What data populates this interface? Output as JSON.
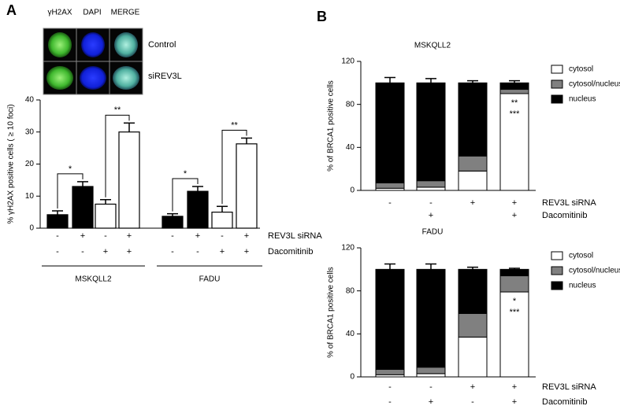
{
  "panel_labels": [
    "A",
    "B"
  ],
  "images": {
    "columns": [
      "γH2AX",
      "DAPI",
      "MERGE"
    ],
    "rows": [
      "Control",
      "siREV3L"
    ]
  },
  "chart_data": [
    {
      "type": "bar",
      "y_label": "% γH2AX positive cells ( ≥ 10 foci)",
      "values": [
        4.2,
        13,
        7.5,
        30,
        3.7,
        11.5,
        5,
        26.3
      ],
      "errors": [
        1.2,
        1.5,
        1.4,
        2.8,
        0.8,
        1.5,
        1.8,
        1.8
      ],
      "colors": [
        "#000000",
        "#000000",
        "#ffffff",
        "#ffffff",
        "#000000",
        "#000000",
        "#ffffff",
        "#ffffff"
      ],
      "ylim": [
        0,
        40
      ],
      "yticks": [
        0,
        10,
        20,
        30,
        40
      ],
      "annotations": [
        "*",
        "**",
        "*",
        "**"
      ],
      "conditions": [
        {
          "name": "REV3L siRNA",
          "labels": [
            "-",
            "+",
            "-",
            "+",
            "-",
            "+",
            "-",
            "+"
          ]
        },
        {
          "name": "Dacomitinib",
          "labels": [
            "-",
            "-",
            "+",
            "+",
            "-",
            "-",
            "+",
            "+"
          ]
        }
      ],
      "groups": [
        "MSKQLL2",
        "FADU"
      ]
    },
    {
      "type": "stacked_bar",
      "title": "MSKQLL2",
      "y_label": "% of BRCA1 positive cells",
      "ylim": [
        0,
        120
      ],
      "yticks": [
        0,
        40,
        80,
        120
      ],
      "series": [
        {
          "name": "cytosol",
          "color": "#ffffff",
          "values": [
            2,
            3,
            18,
            90
          ],
          "errors": [
            null,
            null,
            1,
            1.5
          ]
        },
        {
          "name": "cytosol/nucleus",
          "color": "#808080",
          "values": [
            5,
            6,
            14,
            4
          ],
          "errors": [
            null,
            null,
            null,
            null
          ]
        },
        {
          "name": "nucleus",
          "color": "#000000",
          "values": [
            93,
            91,
            68,
            6
          ],
          "errors": [
            5,
            4,
            2,
            2
          ]
        }
      ],
      "annotations": [
        "**",
        "***"
      ],
      "conditions": [
        {
          "name": "REV3L siRNA",
          "labels": [
            "-",
            "-",
            "+",
            "+"
          ]
        },
        {
          "name": "Dacomitinib",
          "labels": [
            null,
            "+",
            null,
            "+"
          ]
        }
      ]
    },
    {
      "type": "stacked_bar",
      "title": "FADU",
      "y_label": "% of BRCA1 positive cells",
      "ylim": [
        0,
        120
      ],
      "yticks": [
        0,
        40,
        80,
        120
      ],
      "series": [
        {
          "name": "cytosol",
          "color": "#ffffff",
          "values": [
            2,
            3,
            37,
            79
          ],
          "errors": [
            null,
            null,
            1.5,
            4
          ]
        },
        {
          "name": "cytosol/nucleus",
          "color": "#808080",
          "values": [
            5,
            6,
            22,
            15
          ],
          "errors": [
            null,
            null,
            null,
            null
          ]
        },
        {
          "name": "nucleus",
          "color": "#000000",
          "values": [
            93,
            91,
            41,
            6
          ],
          "errors": [
            5,
            5,
            2,
            1
          ]
        }
      ],
      "annotations": [
        "*",
        "***"
      ],
      "conditions": [
        {
          "name": "REV3L siRNA",
          "labels": [
            "-",
            "-",
            "+",
            "+"
          ]
        },
        {
          "name": "Dacomitinib",
          "labels": [
            "-",
            "+",
            "-",
            "+"
          ]
        }
      ]
    }
  ]
}
